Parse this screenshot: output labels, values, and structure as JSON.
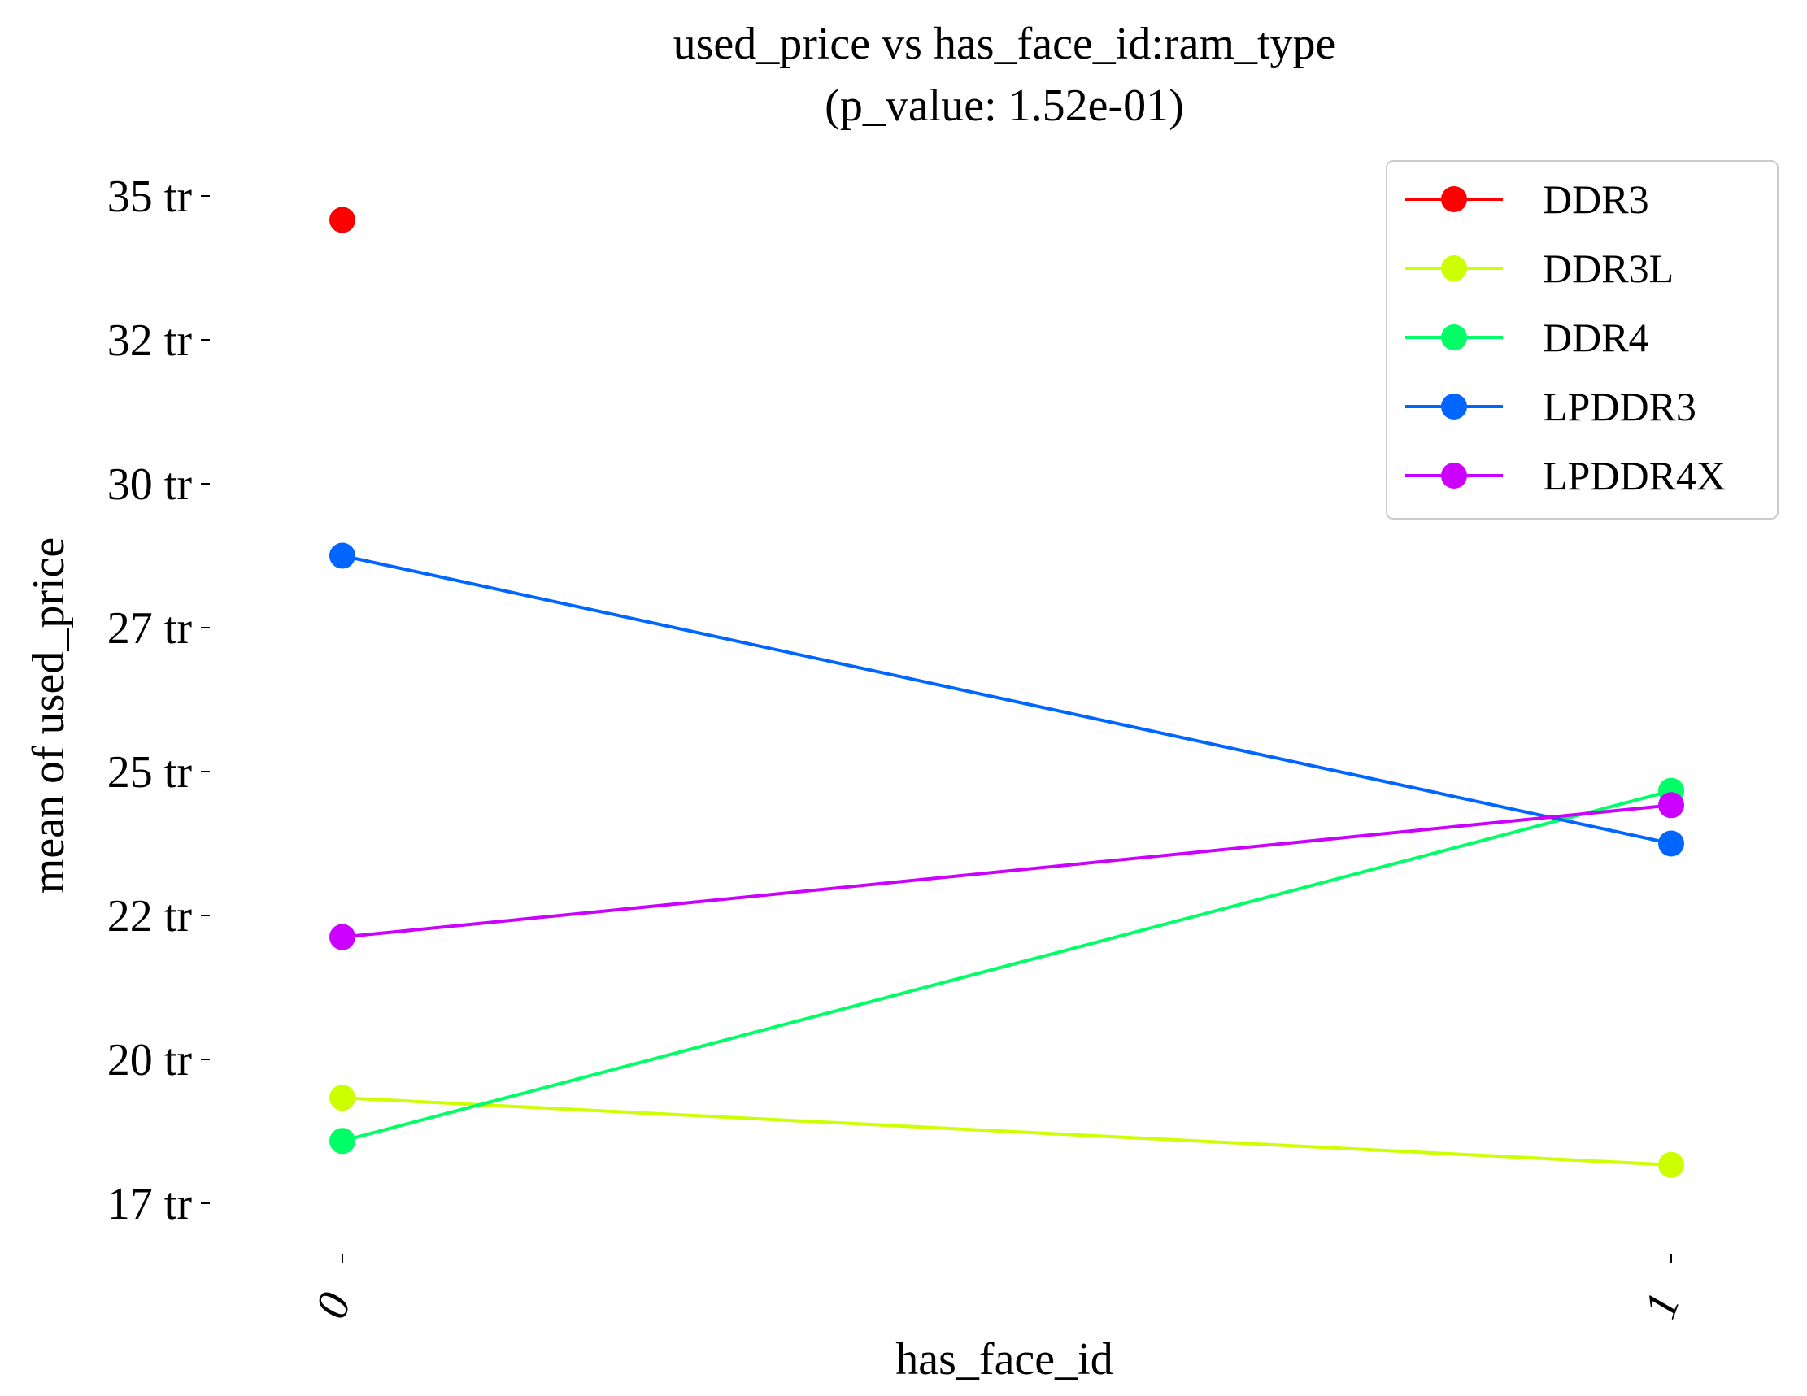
{
  "chart_data": {
    "type": "line",
    "title": "used_price vs has_face_id:ram_type",
    "subtitle": "(p_value: 1.52e-01)",
    "xlabel": "has_face_id",
    "ylabel": "mean of used_price",
    "categories": [
      "0",
      "1"
    ],
    "y_ticks": [
      17,
      20,
      22,
      25,
      27,
      30,
      32,
      35
    ],
    "y_tick_labels": [
      "17 tr",
      "20 tr",
      "22 tr",
      "25 tr",
      "27 tr",
      "30 tr",
      "32 tr",
      "35 tr"
    ],
    "ylim": [
      16.3,
      35.5
    ],
    "grid": false,
    "legend_placement": "top-right",
    "series": [
      {
        "name": "DDR3",
        "color": "#ff0000",
        "values": [
          34.5,
          null
        ]
      },
      {
        "name": "DDR3L",
        "color": "#ccff00",
        "values": [
          19.2,
          17.8
        ]
      },
      {
        "name": "DDR4",
        "color": "#00ff66",
        "values": [
          18.3,
          24.6
        ]
      },
      {
        "name": "LPDDR3",
        "color": "#0066ff",
        "values": [
          28.5,
          23.5
        ]
      },
      {
        "name": "LPDDR4X",
        "color": "#cc00ff",
        "values": [
          21.7,
          24.3
        ]
      }
    ]
  }
}
